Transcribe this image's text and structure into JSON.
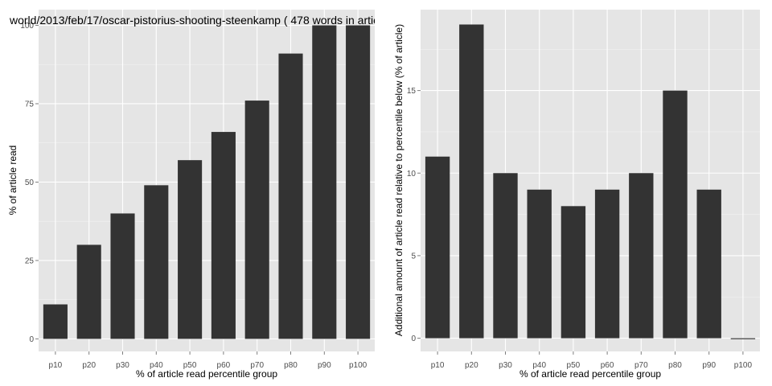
{
  "chart_data": [
    {
      "type": "bar",
      "title": "world/2013/feb/17/oscar-pistorius-shooting-steenkamp ( 478 words in artic",
      "xlabel": "% of article read percentile group",
      "ylabel": "% of article read",
      "categories": [
        "p10",
        "p20",
        "p30",
        "p40",
        "p50",
        "p60",
        "p70",
        "p80",
        "p90",
        "p100"
      ],
      "values": [
        11,
        30,
        40,
        49,
        57,
        66,
        76,
        91,
        100,
        100
      ],
      "ylim": [
        -4,
        105
      ],
      "yticks": [
        0,
        25,
        50,
        75,
        100
      ],
      "grid": true
    },
    {
      "type": "bar",
      "title": "",
      "xlabel": "% of article read percentile group",
      "ylabel": "Additional amount of article read relative to percentile below (% of article)",
      "categories": [
        "p10",
        "p20",
        "p30",
        "p40",
        "p50",
        "p60",
        "p70",
        "p80",
        "p90",
        "p100"
      ],
      "values": [
        11,
        19,
        10,
        9,
        8,
        9,
        10,
        15,
        9,
        0
      ],
      "ylim": [
        -0.8,
        19.9
      ],
      "yticks": [
        0,
        5,
        10,
        15
      ],
      "grid": true
    }
  ],
  "colors": {
    "panel_background": "#e5e5e5",
    "bar_fill": "#333333",
    "grid": "#ffffff"
  }
}
